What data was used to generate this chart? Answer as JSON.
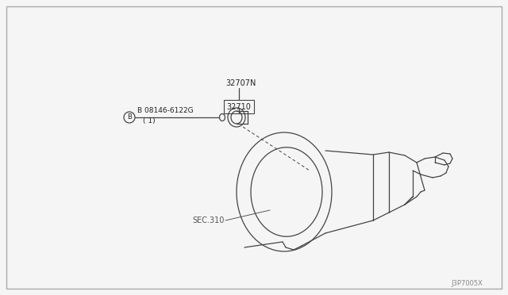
{
  "bg_color": "#f5f5f5",
  "border_color": "#cccccc",
  "line_color": "#444444",
  "text_color": "#222222",
  "label_color": "#555555",
  "fig_width": 6.4,
  "fig_height": 3.72,
  "diagram_code": "J3P7005X",
  "part_32707N_label": "32707N",
  "part_32710_label": "32710",
  "part_B_label": "B 08146-6122G",
  "part_B_sub": "( 1)",
  "sec310_label": "SEC.310"
}
